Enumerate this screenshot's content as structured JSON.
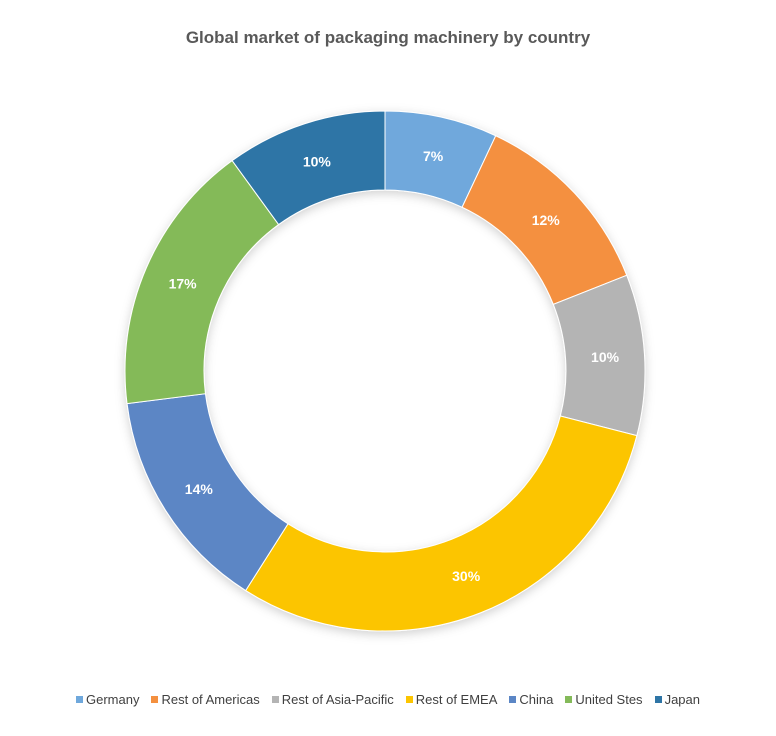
{
  "chart_data": {
    "type": "pie",
    "subtype": "donut",
    "title": "Global market of packaging machinery by country",
    "categories": [
      "Germany",
      "Rest of Americas",
      "Rest of Asia-Pacific",
      "Rest of EMEA",
      "China",
      "United Stes",
      "Japan"
    ],
    "values": [
      7,
      12,
      10,
      30,
      14,
      17,
      10
    ],
    "labels": [
      "7%",
      "12%",
      "10%",
      "30%",
      "14%",
      "17%",
      "10%"
    ],
    "colors": [
      "#6FA8DC",
      "#F4903F",
      "#B4B4B4",
      "#FCC500",
      "#5B86C5",
      "#84BA59",
      "#2E75A6"
    ],
    "legend_position": "bottom"
  }
}
